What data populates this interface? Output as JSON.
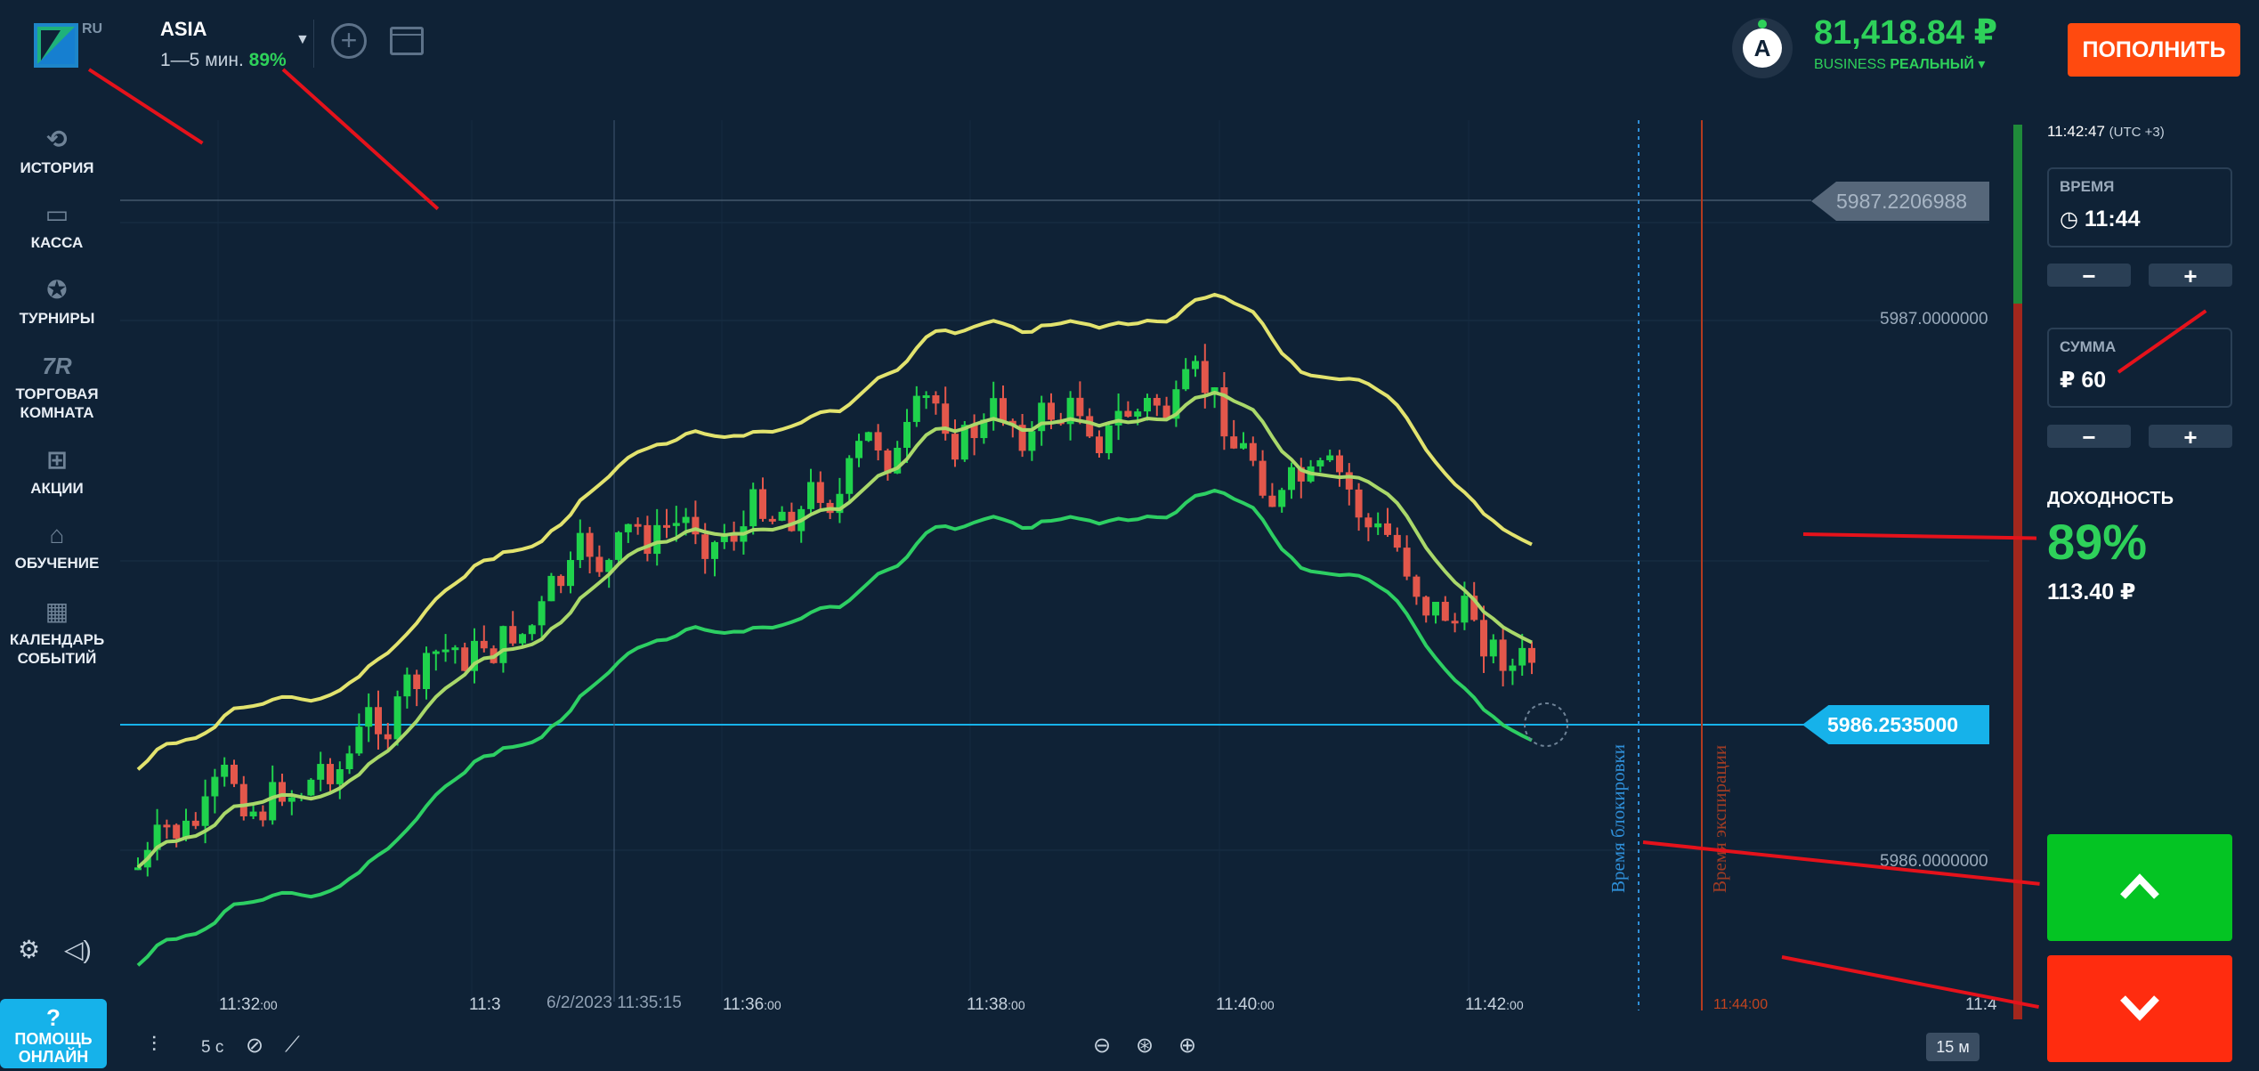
{
  "brand": {
    "logo_suffix": "RU"
  },
  "asset": {
    "name": "ASIA",
    "duration": "1—5 мин.",
    "payout": "89%"
  },
  "account": {
    "avatar_letter": "A",
    "balance": "81,418.84 ₽",
    "tier": "BUSINESS",
    "type": "РЕАЛЬНЫЙ ▾",
    "deposit_label": "ПОПОЛНИТЬ"
  },
  "sidebar": {
    "items": [
      {
        "label": "ИСТОРИЯ",
        "icon": "history-icon"
      },
      {
        "label": "КАССА",
        "icon": "wallet-icon"
      },
      {
        "label": "ТУРНИРЫ",
        "icon": "star-icon"
      },
      {
        "label": "ТОРГОВАЯ КОМНАТА",
        "icon": "trading-room-icon",
        "glyph": "7R"
      },
      {
        "label": "АКЦИИ",
        "icon": "gift-icon"
      },
      {
        "label": "ОБУЧЕНИЕ",
        "icon": "graduation-cap-icon"
      },
      {
        "label": "КАЛЕНДАРЬ СОБЫТИЙ",
        "icon": "calendar-icon"
      }
    ],
    "help": {
      "q": "?",
      "line1": "ПОМОЩЬ",
      "line2": "ОНЛАЙН"
    }
  },
  "chart": {
    "price_marker_top": "5987.2206988",
    "price_current": "5986.2535000",
    "price_levels": [
      "5987.0000000",
      "5986.0000000"
    ],
    "time_labels": [
      {
        "t": "11:32",
        "s": ":00"
      },
      {
        "t": "11:3",
        "s": ""
      },
      {
        "t": "11:36",
        "s": ":00"
      },
      {
        "t": "11:38",
        "s": ":00"
      },
      {
        "t": "11:40",
        "s": ":00"
      },
      {
        "t": "11:42",
        "s": ":00"
      },
      {
        "t": "11:4",
        "s": ""
      }
    ],
    "crosshair_date": "6/2/2023 11:35:15",
    "lock_label": "Время блокировки",
    "expiry_label": "Время экспирации",
    "expiry_time": "11:44:00",
    "colors": {
      "up": "#1fd24c",
      "down": "#e3574b",
      "upper_band": "#e2e36e",
      "middle_band": "#a9d86a",
      "lower_band": "#2dcf63"
    }
  },
  "toolbar": {
    "timeframe": "5 с",
    "zoom_level": "15 м"
  },
  "panel": {
    "clock": "11:42:47",
    "timezone": "(UTC +3)",
    "time_label": "ВРЕМЯ",
    "time_value": "11:44",
    "sum_label": "СУММА",
    "sum_value": "₽ 60",
    "minus": "−",
    "plus": "+",
    "yield_label": "ДОХОДНОСТЬ",
    "yield_pct": "89%",
    "yield_amount": "113.40 ₽"
  }
}
